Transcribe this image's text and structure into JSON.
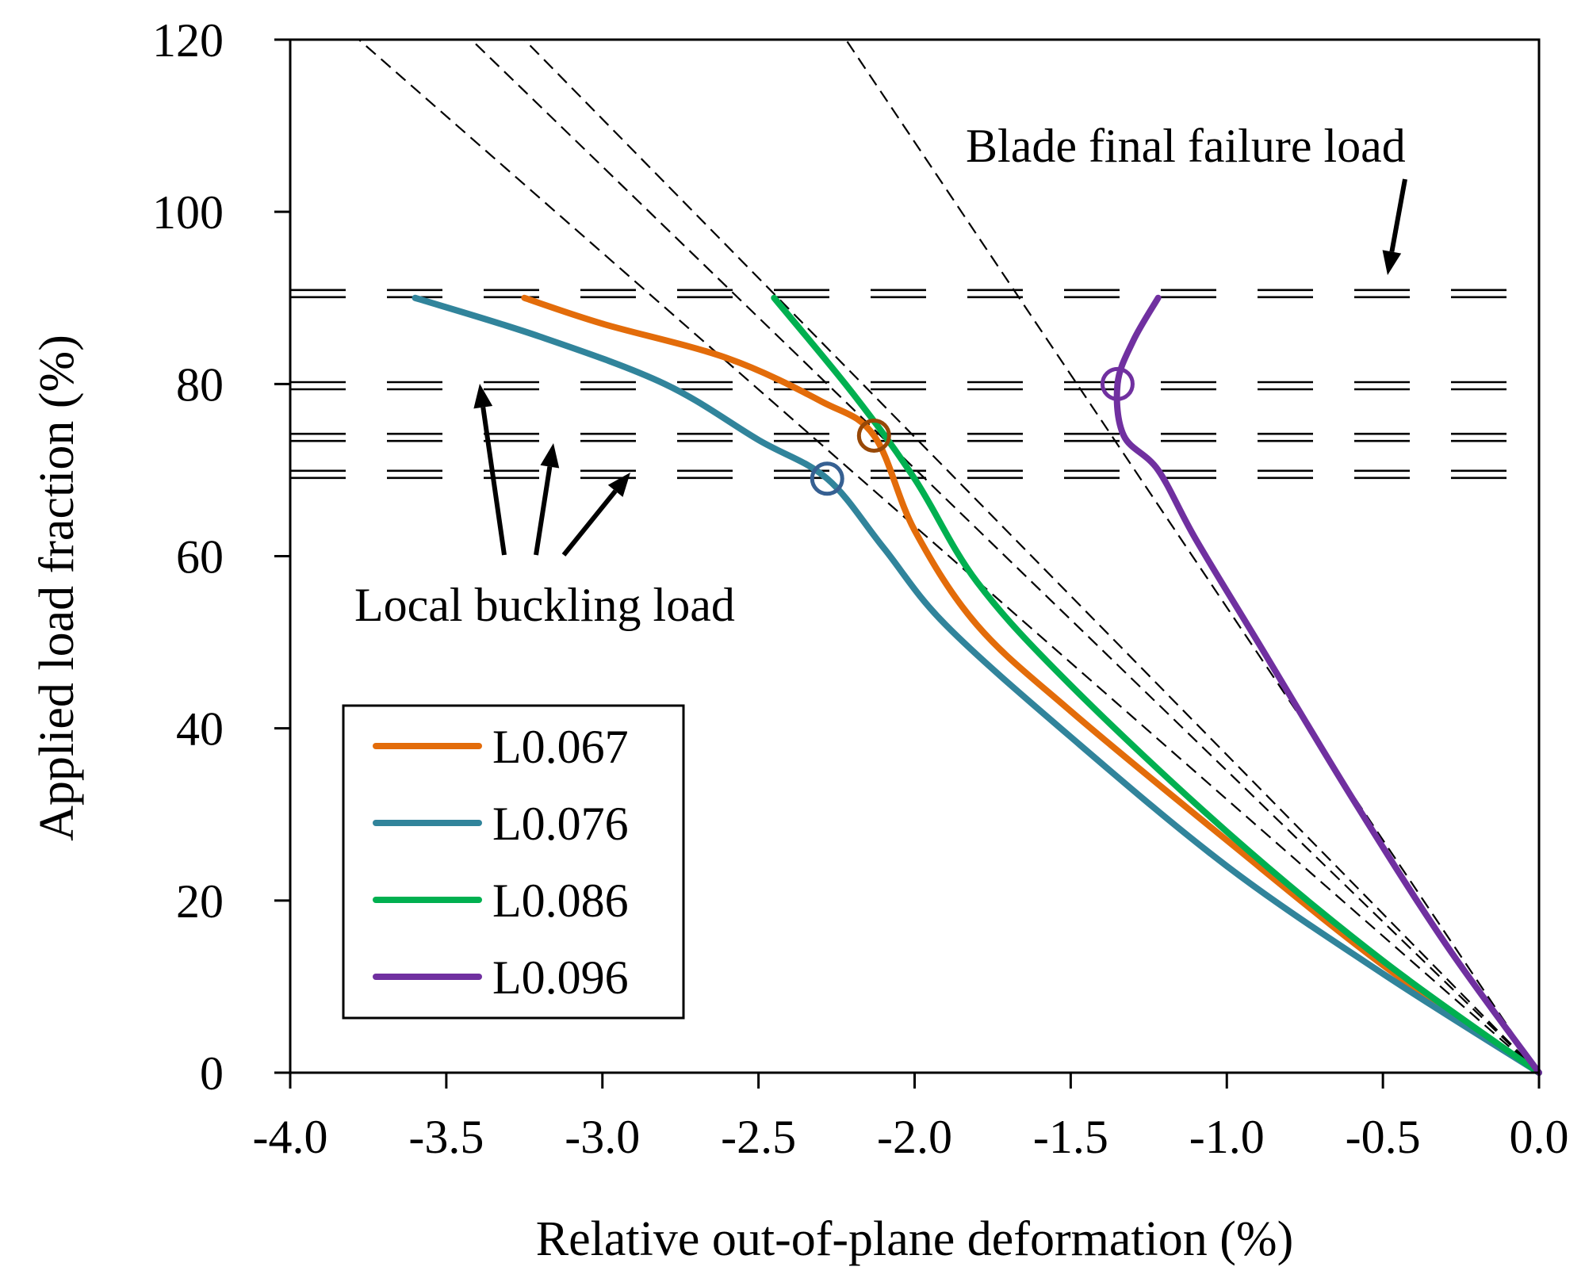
{
  "chart_data": {
    "type": "line",
    "xlabel": "Relative out-of-plane deformation (%)",
    "ylabel": "Applied load fraction (%)",
    "xlim": [
      -4.0,
      0.0
    ],
    "ylim": [
      0,
      120
    ],
    "x_ticks": [
      -4.0,
      -3.5,
      -3.0,
      -2.5,
      -2.0,
      -1.5,
      -1.0,
      -0.5,
      0.0
    ],
    "x_tick_labels": [
      "-4.0",
      "-3.5",
      "-3.0",
      "-2.5",
      "-2.0",
      "-1.5",
      "-1.0",
      "-0.5",
      "0.0"
    ],
    "y_ticks": [
      0,
      20,
      40,
      60,
      80,
      100,
      120
    ],
    "y_tick_labels": [
      "0",
      "20",
      "40",
      "60",
      "80",
      "100",
      "120"
    ],
    "grid": false,
    "legend_position": "bottom-left",
    "series": [
      {
        "name": "L0.067",
        "color": "#E36C0A",
        "x": [
          0.0,
          -0.5,
          -1.0,
          -1.5,
          -1.8,
          -2.0,
          -2.13,
          -2.3,
          -2.6,
          -3.0,
          -3.25
        ],
        "y": [
          0,
          12.5,
          27,
          42,
          52,
          63,
          74,
          78,
          83,
          87,
          90
        ]
      },
      {
        "name": "L0.076",
        "color": "#31849B",
        "x": [
          0.0,
          -0.5,
          -1.0,
          -1.5,
          -1.9,
          -2.1,
          -2.28,
          -2.5,
          -2.8,
          -3.2,
          -3.6
        ],
        "y": [
          0,
          11.5,
          24,
          39,
          52,
          61,
          69,
          73.5,
          80,
          85.5,
          90
        ]
      },
      {
        "name": "L0.086",
        "color": "#00B050",
        "x": [
          0.0,
          -0.5,
          -1.0,
          -1.5,
          -1.8,
          -2.0,
          -2.2,
          -2.45
        ],
        "y": [
          0,
          13,
          28,
          45,
          57,
          69,
          79,
          90
        ]
      },
      {
        "name": "L0.096",
        "color": "#7030A0",
        "x": [
          0.0,
          -0.3,
          -0.6,
          -0.9,
          -1.1,
          -1.22,
          -1.33,
          -1.35,
          -1.3,
          -1.22
        ],
        "y": [
          0,
          15,
          32,
          50,
          62,
          70,
          74,
          80,
          85,
          90
        ]
      }
    ],
    "circle_markers": [
      {
        "x": -2.13,
        "y": 74,
        "color": "#984807"
      },
      {
        "x": -2.28,
        "y": 69,
        "color": "#366092"
      },
      {
        "x": -1.35,
        "y": 80,
        "color": "#7030A0"
      }
    ],
    "reference_lines": [
      {
        "style": "dashed",
        "x1": 0.0,
        "y1": 0,
        "x2": -3.78,
        "y2": 120
      },
      {
        "style": "dashed",
        "x1": 0.0,
        "y1": 0,
        "x2": -3.42,
        "y2": 120
      },
      {
        "style": "dashed",
        "x1": 0.0,
        "y1": 0,
        "x2": -3.25,
        "y2": 120
      },
      {
        "style": "dashed",
        "x1": 0.0,
        "y1": 0,
        "x2": -2.22,
        "y2": 120
      }
    ],
    "horizontal_lines": [
      90.5,
      79.8,
      73.8,
      69.5
    ],
    "annotations": [
      {
        "text": "Blade final failure load"
      },
      {
        "text": "Local buckling load"
      }
    ]
  }
}
